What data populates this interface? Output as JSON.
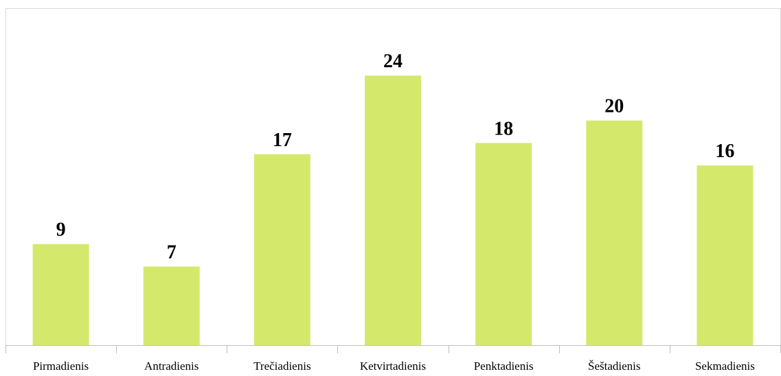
{
  "chart_data": {
    "type": "bar",
    "categories": [
      "Pirmadienis",
      "Antradienis",
      "Trečiadienis",
      "Ketvirtadienis",
      "Penktadienis",
      "Šeštadienis",
      "Sekmadienis"
    ],
    "values": [
      9,
      7,
      17,
      24,
      18,
      20,
      16
    ],
    "color": "#d4e96c",
    "ylim": [
      0,
      30
    ]
  }
}
